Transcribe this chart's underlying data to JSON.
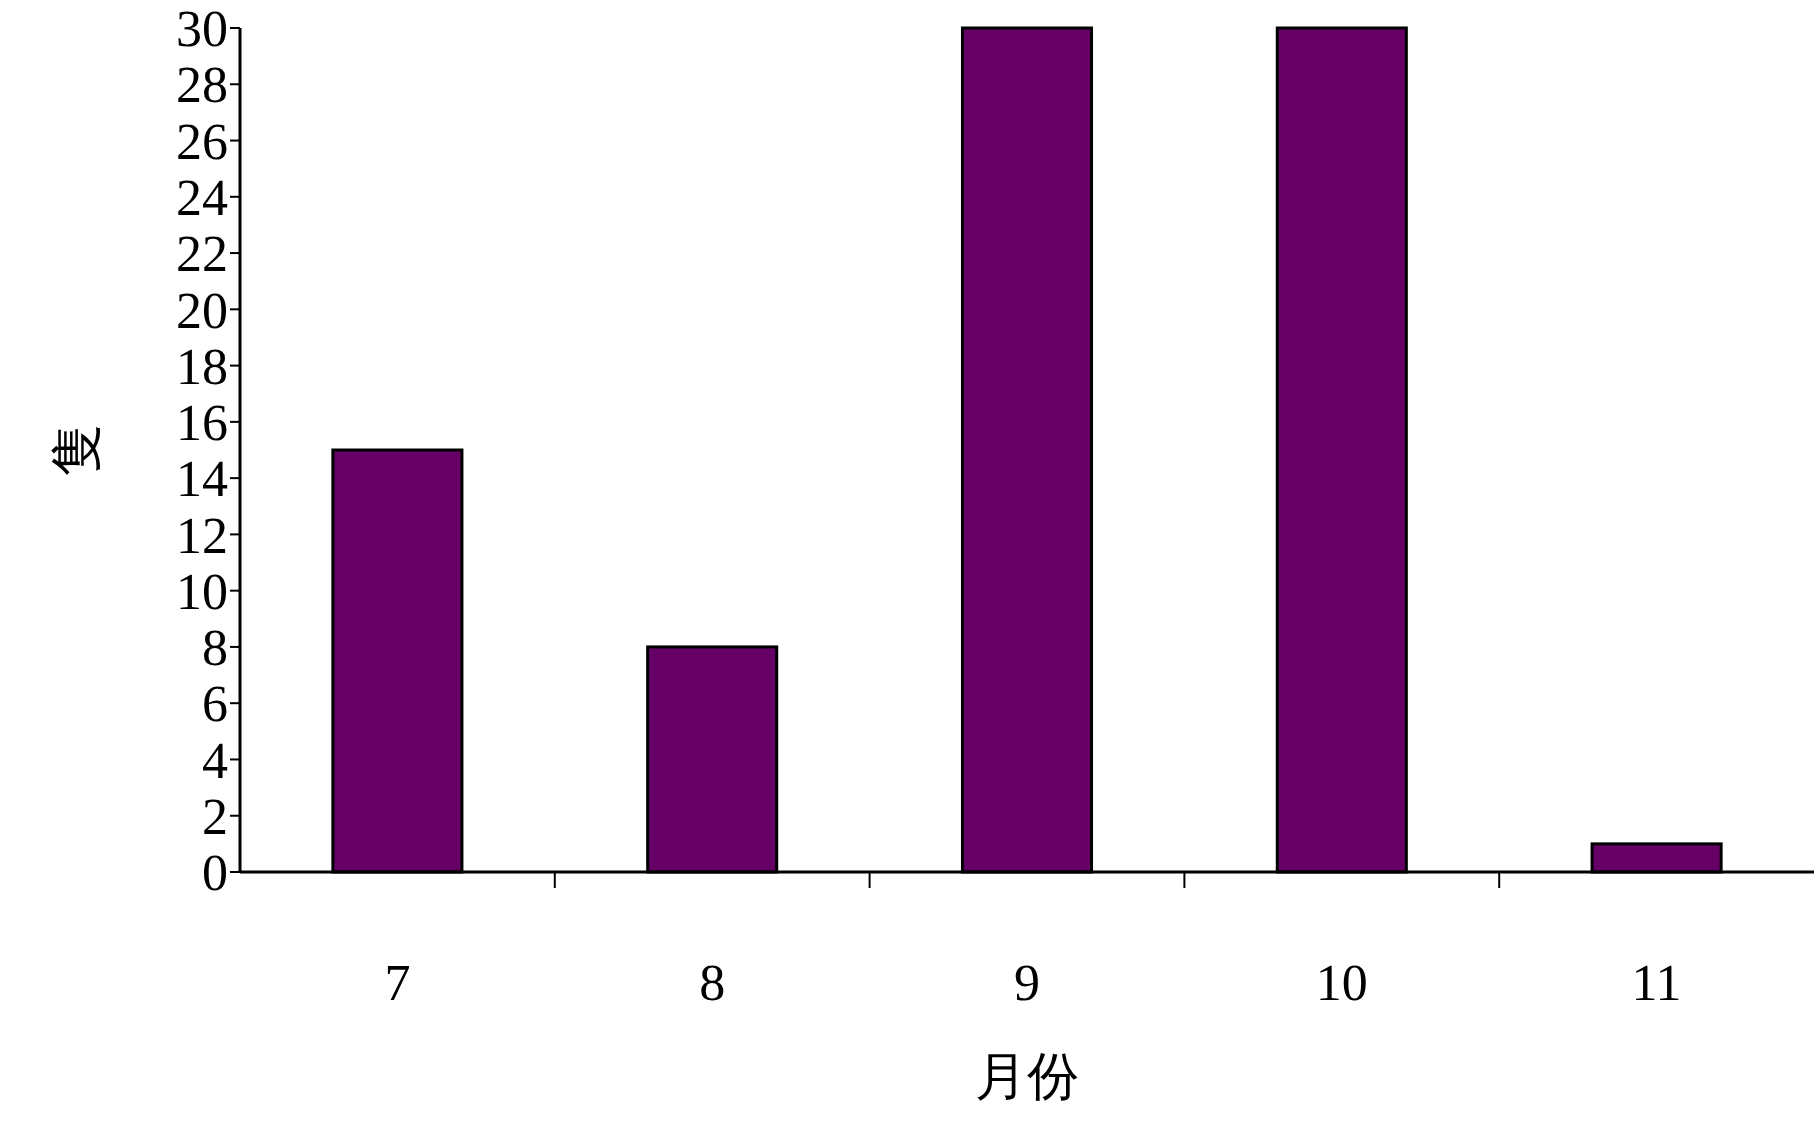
{
  "chart_data": {
    "type": "bar",
    "xlabel": "月份",
    "ylabel": "隻",
    "categories": [
      "7",
      "8",
      "9",
      "10",
      "11"
    ],
    "values": [
      15,
      8,
      30,
      30,
      1
    ],
    "color": "#660066",
    "ylim": [
      0,
      30
    ],
    "yticks": [
      0,
      2,
      4,
      6,
      8,
      10,
      12,
      14,
      16,
      18,
      20,
      22,
      24,
      26,
      28,
      30
    ]
  }
}
